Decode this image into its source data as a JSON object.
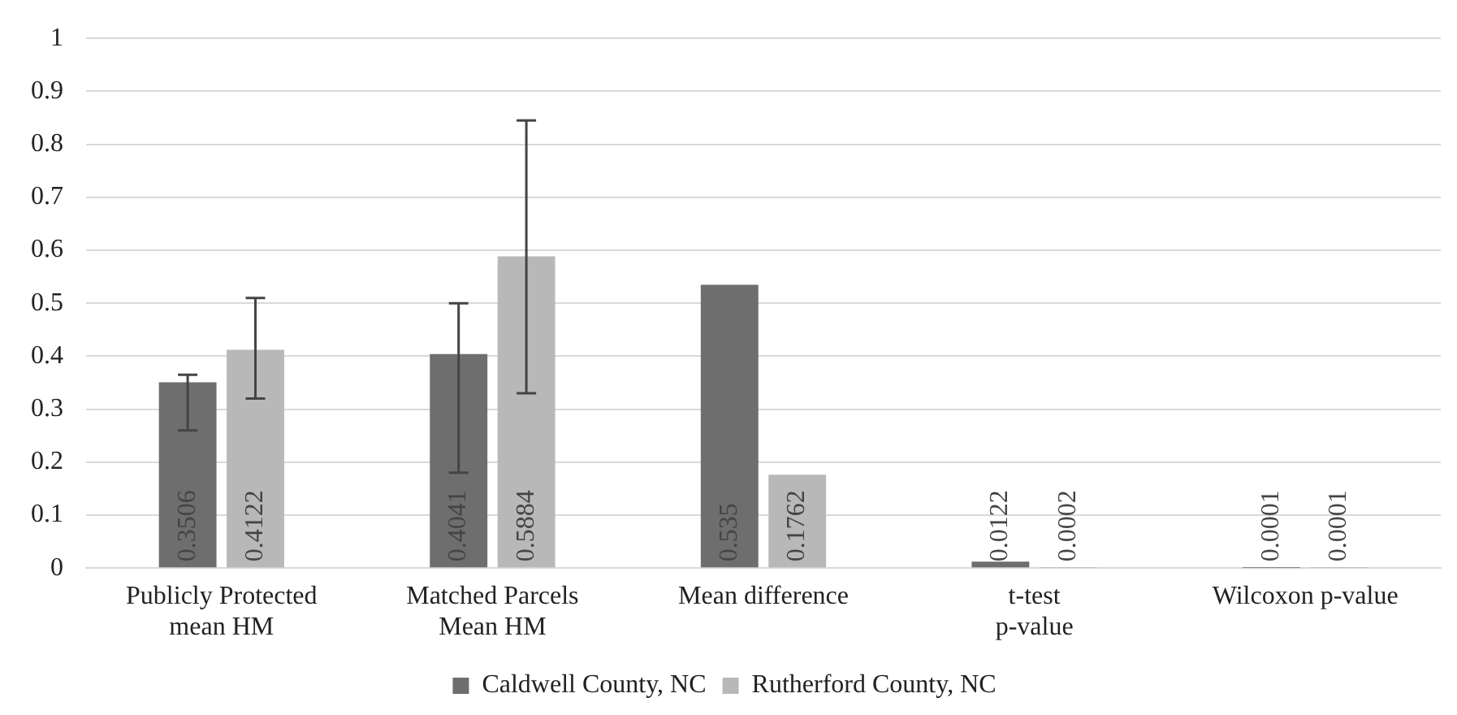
{
  "chart_data": {
    "type": "bar",
    "categories": [
      "Publicly Protected\nmean HM",
      "Matched Parcels\nMean HM",
      "Mean difference",
      "t-test\np-value",
      "Wilcoxon p-value"
    ],
    "series": [
      {
        "name": "Caldwell County, NC",
        "color": "#6e6e6e",
        "values": [
          0.3506,
          0.4041,
          0.535,
          0.0122,
          0.0001
        ],
        "errors": [
          [
            0.26,
            0.365
          ],
          [
            0.18,
            0.5
          ],
          null,
          null,
          null
        ]
      },
      {
        "name": "Rutherford County, NC",
        "color": "#b8b8b8",
        "values": [
          0.4122,
          0.5884,
          0.1762,
          0.0002,
          0.0001
        ],
        "errors": [
          [
            0.32,
            0.51
          ],
          [
            0.33,
            0.845
          ],
          null,
          null,
          null
        ]
      }
    ],
    "ylim": [
      0,
      1
    ],
    "yticks": [
      0,
      0.1,
      0.2,
      0.3,
      0.4,
      0.5,
      0.6,
      0.7,
      0.8,
      0.9,
      1
    ],
    "grid": "y",
    "legend": "bottom",
    "data_labels": true
  }
}
